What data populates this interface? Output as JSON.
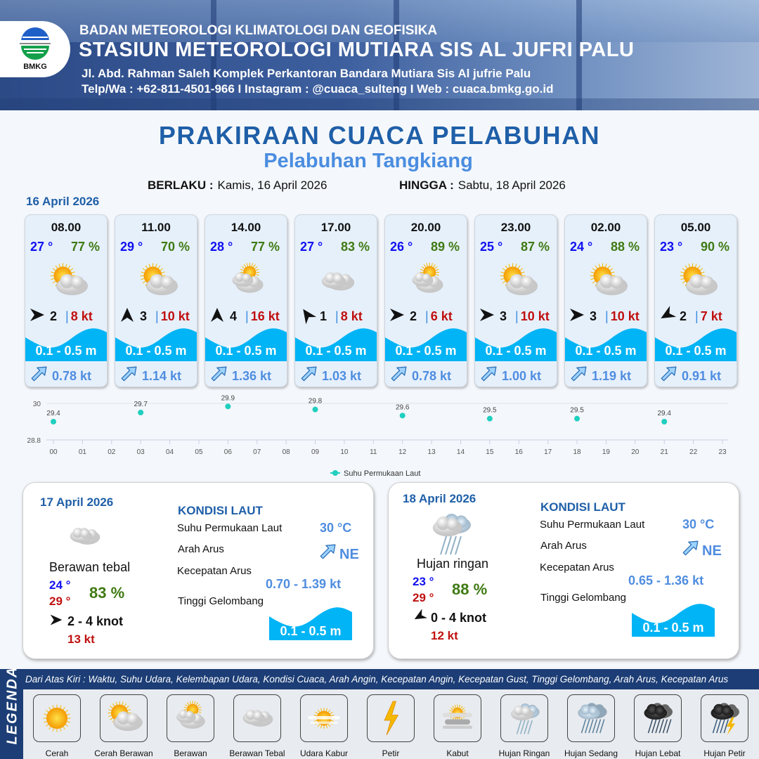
{
  "header": {
    "logo_text": "BMKG",
    "agency": "BADAN METEOROLOGI KLIMATOLOGI DAN GEOFISIKA",
    "station": "STASIUN METEOROLOGI MUTIARA SIS AL JUFRI PALU",
    "address": "Jl. Abd. Rahman Saleh Komplek Perkantoran Bandara Mutiara Sis Al jufrie Palu",
    "contact": "Telp/Wa : +62-811-4501-966  I  Instagram : @cuaca_sulteng  I  Web : cuaca.bmkg.go.id"
  },
  "title": "PRAKIRAAN CUACA PELABUHAN",
  "subtitle": "Pelabuhan Tangkiang",
  "validity": {
    "from_label": "BERLAKU :",
    "from": "Kamis, 16 April 2026",
    "to_label": "HINGGA :",
    "to": "Sabtu, 18 April 2026"
  },
  "day1": {
    "date": "16 April 2026",
    "slots": [
      {
        "time": "08.00",
        "temp": "27 °",
        "rh": "77 %",
        "icon": "cerah-berawan",
        "wind_dir": "E",
        "wind": "2",
        "gust": "8 kt",
        "wave": "0.1 - 0.5 m",
        "current": "0.78 kt"
      },
      {
        "time": "11.00",
        "temp": "29 °",
        "rh": "70 %",
        "icon": "cerah-berawan",
        "wind_dir": "N",
        "wind": "3",
        "gust": "10 kt",
        "wave": "0.1 - 0.5 m",
        "current": "1.14 kt"
      },
      {
        "time": "14.00",
        "temp": "28 °",
        "rh": "77 %",
        "icon": "berawan",
        "wind_dir": "N",
        "wind": "4",
        "gust": "16 kt",
        "wave": "0.1 - 0.5 m",
        "current": "1.36 kt"
      },
      {
        "time": "17.00",
        "temp": "27 °",
        "rh": "83 %",
        "icon": "berawan-tebal",
        "wind_dir": "NW",
        "wind": "1",
        "gust": "8 kt",
        "wave": "0.1 - 0.5 m",
        "current": "1.03 kt"
      },
      {
        "time": "20.00",
        "temp": "26 °",
        "rh": "89 %",
        "icon": "berawan",
        "wind_dir": "E",
        "wind": "2",
        "gust": "6 kt",
        "wave": "0.1 - 0.5 m",
        "current": "0.78 kt"
      },
      {
        "time": "23.00",
        "temp": "25 °",
        "rh": "87 %",
        "icon": "cerah-berawan",
        "wind_dir": "E",
        "wind": "3",
        "gust": "10 kt",
        "wave": "0.1 - 0.5 m",
        "current": "1.00 kt"
      },
      {
        "time": "02.00",
        "temp": "24 °",
        "rh": "88 %",
        "icon": "cerah-berawan",
        "wind_dir": "E",
        "wind": "3",
        "gust": "10 kt",
        "wave": "0.1 - 0.5 m",
        "current": "1.19 kt"
      },
      {
        "time": "05.00",
        "temp": "23 °",
        "rh": "90 %",
        "icon": "cerah-berawan",
        "wind_dir": "SW",
        "wind": "2",
        "gust": "7 kt",
        "wave": "0.1 - 0.5 m",
        "current": "0.91 kt"
      }
    ],
    "current_dir": "NE"
  },
  "chart_data": {
    "type": "scatter",
    "x_ticks": [
      "00",
      "01",
      "02",
      "03",
      "04",
      "05",
      "06",
      "07",
      "08",
      "09",
      "10",
      "11",
      "12",
      "13",
      "14",
      "15",
      "16",
      "17",
      "18",
      "19",
      "20",
      "21",
      "22",
      "23"
    ],
    "y_ticks": [
      "30",
      "28.8"
    ],
    "ylim": [
      28.8,
      30
    ],
    "grid": true,
    "legend_position": "bottom",
    "series": [
      {
        "name": "Suhu Permukaan Laut",
        "color": "#1fcfbf",
        "x": [
          0,
          3,
          6,
          9,
          12,
          15,
          18,
          21
        ],
        "y": [
          29.4,
          29.7,
          29.9,
          29.8,
          29.6,
          29.5,
          29.5,
          29.4
        ],
        "labels": [
          "29.4",
          "29.7",
          "29.9",
          "29.8",
          "29.6",
          "29.5",
          "29.5",
          "29.4"
        ]
      }
    ]
  },
  "panels": [
    {
      "date": "17 April 2026",
      "icon": "berawan-tebal",
      "condition": "Berawan tebal",
      "tmin": "24 °",
      "tmax": "29 °",
      "rh": "83 %",
      "wind_dir": "E",
      "wind": "2  - 4 knot",
      "gust": "13 kt",
      "sea_title": "KONDISI LAUT",
      "sst_label": "Suhu Permukaan Laut",
      "sst": "30 °C",
      "dir_label": "Arah Arus",
      "dir": "NE",
      "speed_label": "Kecepatan Arus",
      "speed": "0.70  - 1.39 kt",
      "wave_label": "Tinggi Gelombang",
      "wave": "0.1 - 0.5 m"
    },
    {
      "date": "18 April 2026",
      "icon": "hujan-ringan",
      "condition": "Hujan ringan",
      "tmin": "23 °",
      "tmax": "29 °",
      "rh": "88 %",
      "wind_dir": "SW",
      "wind": "0  - 4 knot",
      "gust": "12 kt",
      "sea_title": "KONDISI LAUT",
      "sst_label": "Suhu Permukaan Laut",
      "sst": "30 °C",
      "dir_label": "Arah Arus",
      "dir": "NE",
      "speed_label": "Kecepatan Arus",
      "speed": "0.65  - 1.36 kt",
      "wave_label": "Tinggi Gelombang",
      "wave": "0.1 - 0.5 m"
    }
  ],
  "legend": {
    "title": "LEGENDA",
    "description": "Dari Atas Kiri : Waktu, Suhu Udara, Kelembapan Udara, Kondisi Cuaca, Arah Angin, Kecepatan Angin, Kecepatan Gust, Tinggi Gelombang, Arah Arus, Kecepatan Arus",
    "items": [
      {
        "label": "Cerah",
        "icon": "cerah"
      },
      {
        "label": "Cerah Berawan",
        "icon": "cerah-berawan"
      },
      {
        "label": "Berawan",
        "icon": "berawan"
      },
      {
        "label": "Berawan Tebal",
        "icon": "berawan-tebal"
      },
      {
        "label": "Udara Kabur",
        "icon": "udara-kabur"
      },
      {
        "label": "Petir",
        "icon": "petir"
      },
      {
        "label": "Kabut",
        "icon": "kabut"
      },
      {
        "label": "Hujan Ringan",
        "icon": "hujan-ringan"
      },
      {
        "label": "Hujan Sedang",
        "icon": "hujan-sedang"
      },
      {
        "label": "Hujan Lebat",
        "icon": "hujan-lebat"
      },
      {
        "label": "Hujan Petir",
        "icon": "hujan-petir"
      }
    ]
  },
  "colors": {
    "title": "#1f5fa8",
    "wave": "#00b4f5",
    "temp": "#1010f0",
    "humidity": "#3f7a12",
    "gust": "#c01010",
    "current": "#4f8de0",
    "legend_bg": "#1c3d75"
  }
}
